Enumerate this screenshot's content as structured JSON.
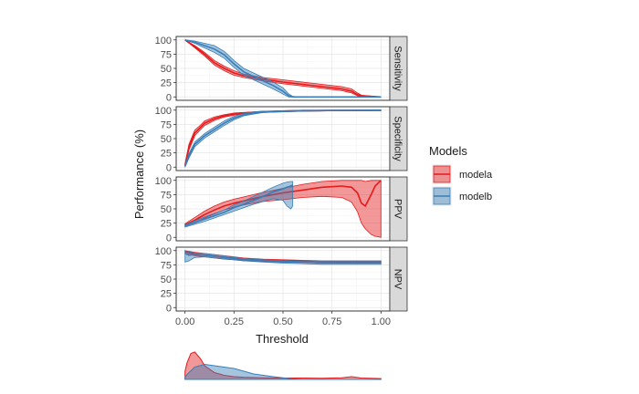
{
  "chart_data": {
    "type": "line",
    "xlabel": "Threshold",
    "ylabel": "Performance (%)",
    "xlim": [
      0,
      1
    ],
    "ylim": [
      0,
      100
    ],
    "x_ticks": [
      0,
      0.25,
      0.5,
      0.75,
      1.0
    ],
    "x_tick_labels": [
      "0.00",
      "0.25",
      "0.50",
      "0.75",
      "1.00"
    ],
    "y_ticks": [
      0,
      25,
      50,
      75,
      100
    ],
    "y_tick_labels": [
      "0",
      "25",
      "50",
      "75",
      "100"
    ],
    "legend": {
      "title": "Models",
      "entries": [
        {
          "name": "modela",
          "color": "#e41a1c"
        },
        {
          "name": "modelb",
          "color": "#377eb8"
        }
      ]
    },
    "panels": [
      {
        "name": "Sensitivity",
        "series": [
          {
            "model": "modela",
            "x": [
              0,
              0.05,
              0.1,
              0.15,
              0.2,
              0.25,
              0.3,
              0.4,
              0.5,
              0.6,
              0.7,
              0.8,
              0.85,
              0.88,
              0.9,
              1.0
            ],
            "y": [
              100,
              88,
              75,
              60,
              50,
              42,
              37,
              31,
              26,
              22,
              18,
              14,
              10,
              4,
              2,
              0
            ],
            "lo": [
              100,
              86,
              72,
              56,
              46,
              38,
              34,
              28,
              23,
              19,
              15,
              11,
              7,
              2,
              1,
              0
            ],
            "hi": [
              100,
              90,
              78,
              64,
              54,
              46,
              40,
              34,
              30,
              26,
              22,
              18,
              14,
              7,
              3,
              0
            ]
          },
          {
            "model": "modelb",
            "x": [
              0,
              0.05,
              0.1,
              0.15,
              0.2,
              0.25,
              0.3,
              0.35,
              0.4,
              0.45,
              0.5,
              0.53,
              0.55,
              0.6,
              0.7,
              0.8,
              0.9,
              1.0
            ],
            "y": [
              100,
              96,
              90,
              84,
              74,
              58,
              44,
              36,
              28,
              20,
              10,
              2,
              0,
              0,
              0,
              0,
              0,
              0
            ],
            "lo": [
              100,
              94,
              86,
              78,
              68,
              52,
              38,
              30,
              22,
              14,
              5,
              0,
              0,
              0,
              0,
              0,
              0,
              0
            ],
            "hi": [
              100,
              98,
              94,
              90,
              80,
              64,
              50,
              42,
              34,
              26,
              16,
              5,
              1,
              0,
              0,
              0,
              0,
              0
            ]
          }
        ]
      },
      {
        "name": "Specificity",
        "series": [
          {
            "model": "modela",
            "x": [
              0,
              0.02,
              0.05,
              0.08,
              0.1,
              0.15,
              0.2,
              0.25,
              0.3,
              0.4,
              0.5,
              0.6,
              0.8,
              1.0
            ],
            "y": [
              3,
              35,
              60,
              70,
              77,
              85,
              90,
              93,
              95,
              97,
              98,
              99,
              99.5,
              100
            ],
            "lo": [
              1,
              30,
              55,
              66,
              73,
              82,
              88,
              91,
              94,
              96,
              97,
              98,
              99,
              99
            ],
            "hi": [
              6,
              40,
              65,
              74,
              81,
              88,
              92,
              95,
              96,
              98,
              99,
              100,
              100,
              100
            ]
          },
          {
            "model": "modelb",
            "x": [
              0,
              0.02,
              0.05,
              0.1,
              0.15,
              0.2,
              0.25,
              0.3,
              0.35,
              0.4,
              0.5,
              0.6,
              0.8,
              1.0
            ],
            "y": [
              2,
              20,
              40,
              55,
              66,
              77,
              86,
              92,
              95,
              97,
              98,
              99,
              99.5,
              100
            ],
            "lo": [
              0,
              16,
              36,
              51,
              62,
              73,
              83,
              90,
              93,
              96,
              97,
              98,
              99,
              99
            ],
            "hi": [
              4,
              24,
              44,
              59,
              70,
              81,
              89,
              94,
              97,
              98,
              99,
              100,
              100,
              100
            ]
          }
        ]
      },
      {
        "name": "PPV",
        "series": [
          {
            "model": "modela",
            "x": [
              0,
              0.05,
              0.1,
              0.15,
              0.2,
              0.25,
              0.3,
              0.4,
              0.5,
              0.6,
              0.7,
              0.8,
              0.85,
              0.88,
              0.9,
              0.92,
              0.95,
              0.97,
              1.0
            ],
            "y": [
              22,
              30,
              40,
              48,
              55,
              60,
              64,
              72,
              78,
              83,
              88,
              90,
              88,
              78,
              60,
              55,
              75,
              90,
              100
            ],
            "lo": [
              20,
              25,
              34,
              41,
              48,
              53,
              57,
              63,
              66,
              70,
              72,
              70,
              62,
              45,
              25,
              15,
              5,
              2,
              0
            ],
            "hi": [
              24,
              35,
              46,
              55,
              62,
              67,
              71,
              79,
              86,
              93,
              98,
              100,
              100,
              100,
              100,
              98,
              100,
              100,
              100
            ]
          },
          {
            "model": "modelb",
            "x": [
              0,
              0.05,
              0.1,
              0.15,
              0.2,
              0.25,
              0.3,
              0.35,
              0.4,
              0.45,
              0.5,
              0.52,
              0.54,
              0.55
            ],
            "y": [
              20,
              26,
              32,
              38,
              44,
              52,
              58,
              65,
              72,
              80,
              85,
              88,
              90,
              92
            ],
            "lo": [
              18,
              23,
              28,
              34,
              40,
              46,
              52,
              58,
              63,
              68,
              65,
              55,
              50,
              55
            ],
            "hi": [
              22,
              29,
              36,
              42,
              48,
              57,
              64,
              72,
              80,
              88,
              95,
              97,
              98,
              98
            ]
          }
        ]
      },
      {
        "name": "NPV",
        "series": [
          {
            "model": "modela",
            "x": [
              0,
              0.05,
              0.1,
              0.15,
              0.2,
              0.25,
              0.3,
              0.4,
              0.5,
              0.6,
              0.7,
              0.8,
              0.9,
              1.0
            ],
            "y": [
              98,
              94,
              92,
              90,
              88,
              86,
              84,
              83,
              82,
              81,
              80,
              80,
              80,
              80
            ],
            "lo": [
              95,
              91,
              89,
              87,
              85,
              84,
              82,
              81,
              80,
              79,
              78,
              78,
              78,
              78
            ],
            "hi": [
              100,
              97,
              95,
              93,
              91,
              89,
              87,
              85,
              84,
              83,
              82,
              82,
              82,
              82
            ]
          },
          {
            "model": "modelb",
            "x": [
              0,
              0.02,
              0.05,
              0.1,
              0.15,
              0.2,
              0.25,
              0.3,
              0.4,
              0.5,
              0.6,
              0.7,
              0.8,
              0.9,
              1.0
            ],
            "y": [
              95,
              92,
              93,
              92,
              90,
              88,
              86,
              84,
              82,
              80,
              80,
              79,
              79,
              79,
              79
            ],
            "lo": [
              80,
              82,
              88,
              89,
              87,
              85,
              84,
              82,
              80,
              78,
              77,
              76,
              76,
              76,
              76
            ],
            "hi": [
              100,
              98,
              96,
              95,
              93,
              91,
              88,
              86,
              84,
              82,
              81,
              81,
              81,
              81,
              81
            ]
          }
        ]
      }
    ],
    "density": {
      "series": [
        {
          "model": "modela",
          "x": [
            0,
            0.01,
            0.03,
            0.05,
            0.08,
            0.1,
            0.15,
            0.2,
            0.25,
            0.3,
            0.4,
            0.5,
            0.6,
            0.7,
            0.8,
            0.85,
            0.9,
            1.0
          ],
          "y": [
            0.3,
            0.6,
            0.95,
            1.0,
            0.75,
            0.5,
            0.25,
            0.15,
            0.1,
            0.08,
            0.06,
            0.05,
            0.05,
            0.04,
            0.06,
            0.1,
            0.05,
            0.03
          ]
        },
        {
          "model": "modelb",
          "x": [
            0,
            0.02,
            0.05,
            0.1,
            0.15,
            0.2,
            0.25,
            0.3,
            0.35,
            0.4,
            0.45,
            0.5,
            0.52,
            0.55,
            0.6,
            1.0
          ],
          "y": [
            0.1,
            0.25,
            0.45,
            0.55,
            0.5,
            0.45,
            0.4,
            0.3,
            0.2,
            0.15,
            0.1,
            0.06,
            0.04,
            0.02,
            0.0,
            0.0
          ]
        }
      ]
    }
  }
}
